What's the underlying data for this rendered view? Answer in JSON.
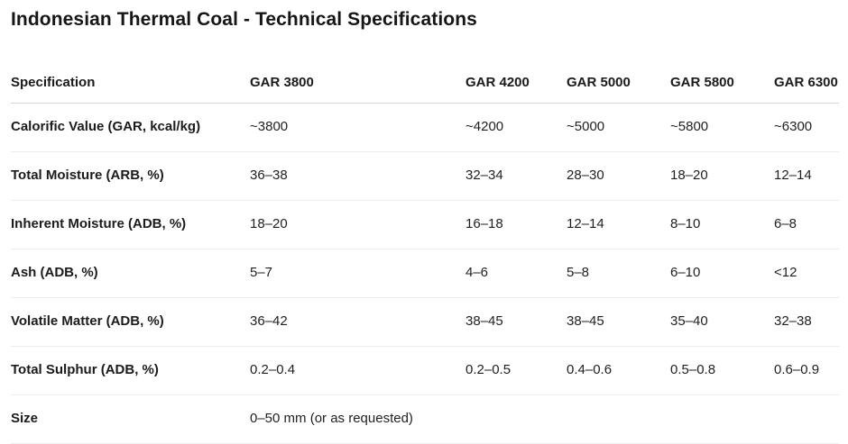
{
  "page": {
    "title": "Indonesian Thermal Coal - Technical Specifications"
  },
  "table": {
    "headers": [
      "Specification",
      "GAR 3800",
      "GAR 4200",
      "GAR 5000",
      "GAR 5800",
      "GAR 6300"
    ],
    "rows": [
      {
        "label": "Calorific Value (GAR, kcal/kg)",
        "values": [
          "~3800",
          "~4200",
          "~5000",
          "~5800",
          "~6300"
        ]
      },
      {
        "label": "Total Moisture (ARB, %)",
        "values": [
          "36–38",
          "32–34",
          "28–30",
          "18–20",
          "12–14"
        ]
      },
      {
        "label": "Inherent Moisture (ADB, %)",
        "values": [
          "18–20",
          "16–18",
          "12–14",
          "8–10",
          "6–8"
        ]
      },
      {
        "label": "Ash (ADB, %)",
        "values": [
          "5–7",
          "4–6",
          "5–8",
          "6–10",
          "<12"
        ]
      },
      {
        "label": "Volatile Matter (ADB, %)",
        "values": [
          "36–42",
          "38–45",
          "38–45",
          "35–40",
          "32–38"
        ]
      },
      {
        "label": "Total Sulphur (ADB, %)",
        "values": [
          "0.2–0.4",
          "0.2–0.5",
          "0.4–0.6",
          "0.5–0.8",
          "0.6–0.9"
        ]
      },
      {
        "label": "Size",
        "values": [
          "0–50 mm (or as requested)",
          "",
          "",
          "",
          ""
        ]
      }
    ]
  },
  "colors": {
    "text": "#1b1b1b",
    "header_border": "#d6d6d6",
    "row_border": "#ececec",
    "background": "#ffffff"
  }
}
